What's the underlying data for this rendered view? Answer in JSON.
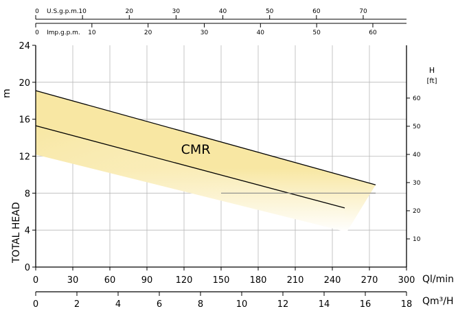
{
  "chart_data": {
    "type": "area",
    "band_label": "CMR",
    "y_left_label": "TOTAL HEAD",
    "y_left_unit": "m",
    "y_right_label": "H",
    "y_right_unit": "[ft]",
    "x_primary_unit": "Ql/min",
    "x_secondary_unit": "Qm³/H",
    "top_scale_1_label": "U.S.g.p.m.",
    "top_scale_2_label": "Imp.g.p.m.",
    "x_primary_ticks": [
      0,
      30,
      60,
      90,
      120,
      150,
      180,
      210,
      240,
      270,
      300
    ],
    "x_secondary_ticks": [
      0,
      2,
      4,
      6,
      8,
      10,
      12,
      14,
      16,
      18
    ],
    "y_left_ticks": [
      0,
      4,
      8,
      12,
      16,
      20,
      24
    ],
    "y_right_ticks": [
      10,
      20,
      30,
      40,
      50,
      60
    ],
    "top_usgpm_ticks": [
      0,
      10,
      20,
      30,
      40,
      50,
      60,
      70
    ],
    "top_impgpm_ticks": [
      0,
      10,
      20,
      30,
      40,
      50,
      60
    ],
    "xlim": [
      0,
      300
    ],
    "ylim": [
      0,
      24
    ],
    "grid": true,
    "series": [
      {
        "role": "upper-curve",
        "x": [
          0,
          275
        ],
        "y": [
          19.1,
          8.9
        ]
      },
      {
        "role": "lower-curve",
        "x": [
          0,
          250
        ],
        "y": [
          15.3,
          6.4
        ]
      }
    ],
    "reference_line": {
      "x": [
        150,
        275
      ],
      "y": [
        8,
        8
      ]
    }
  }
}
